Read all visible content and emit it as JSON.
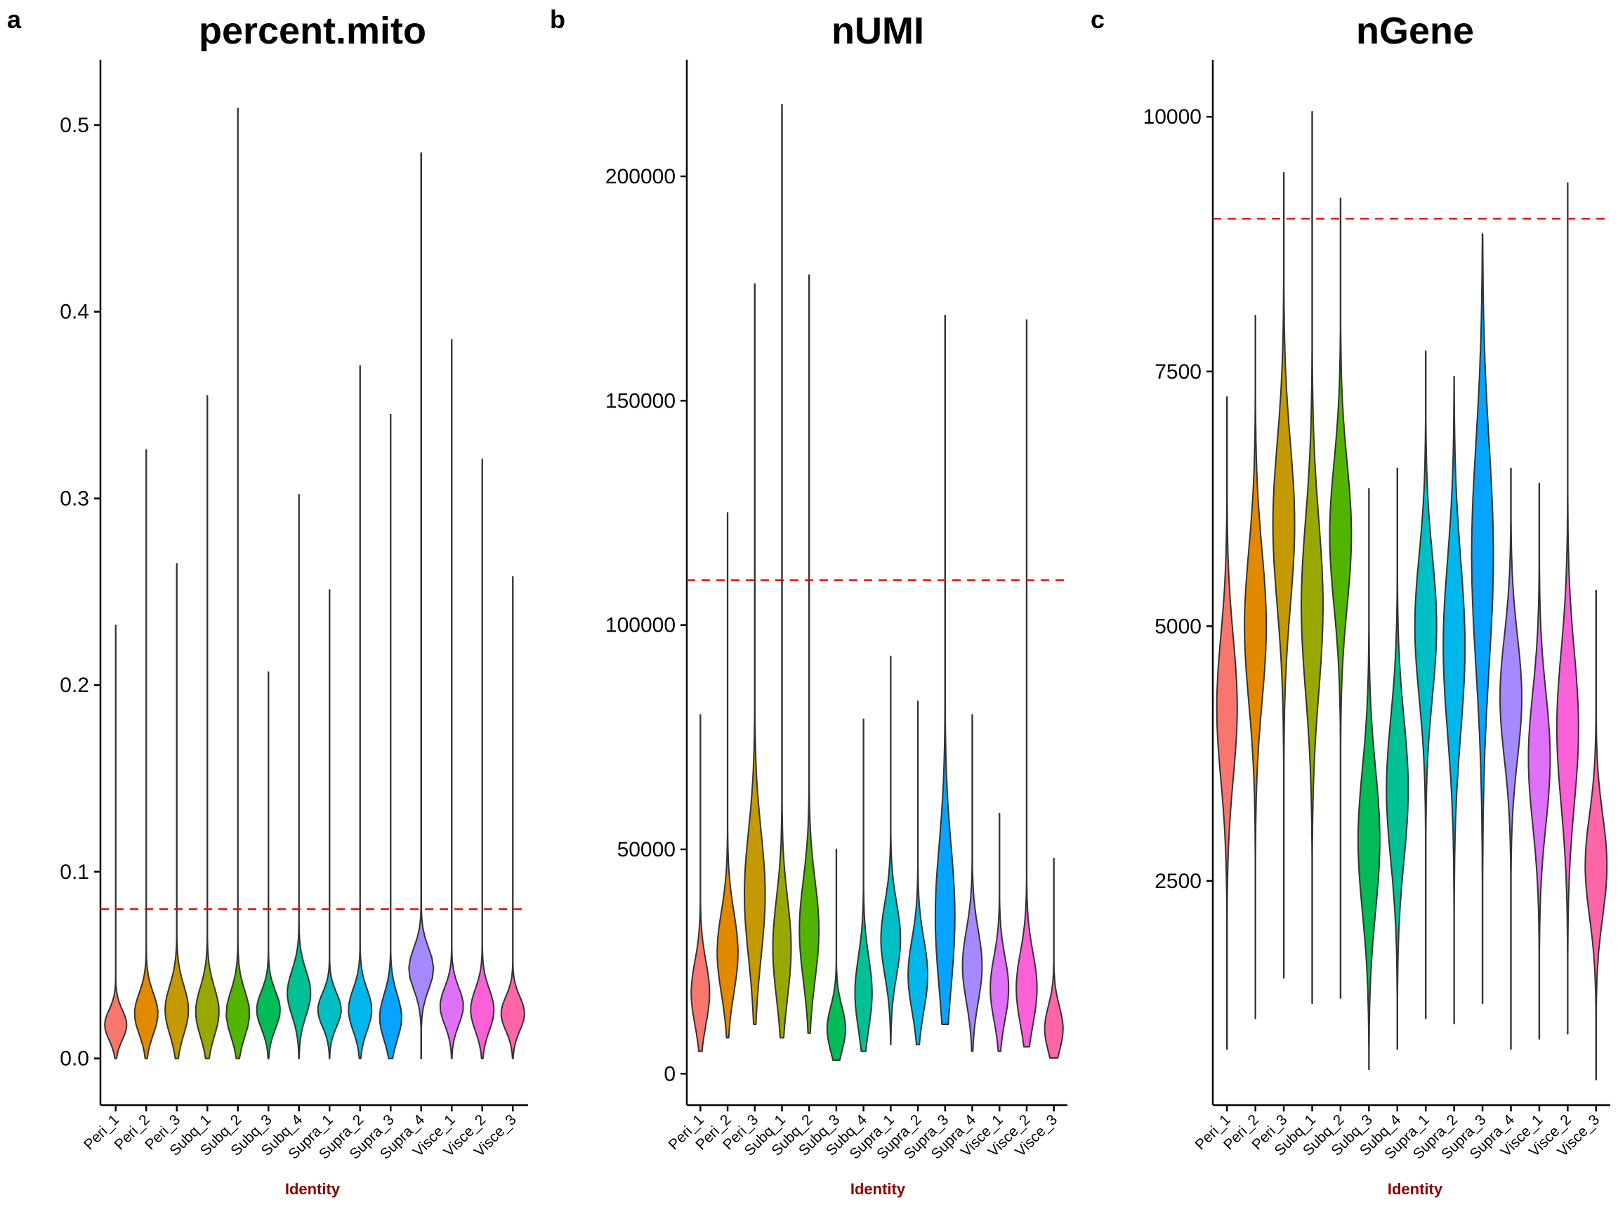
{
  "chart_data": [
    {
      "type": "violin",
      "panel_label": "a",
      "title": "percent.mito",
      "xlabel": "Identity",
      "ylabel": "",
      "ylim": [
        -0.025,
        0.535
      ],
      "yticks": [
        0.0,
        0.1,
        0.2,
        0.3,
        0.4,
        0.5
      ],
      "ytick_labels": [
        "0.0",
        "0.1",
        "0.2",
        "0.3",
        "0.4",
        "0.5"
      ],
      "threshold": 0.08,
      "categories": [
        "Peri_1",
        "Peri_2",
        "Peri_3",
        "Subq_1",
        "Subq_2",
        "Subq_3",
        "Subq_4",
        "Supra_1",
        "Supra_2",
        "Supra_3",
        "Supra_4",
        "Visce_1",
        "Visce_2",
        "Visce_3"
      ],
      "series": [
        {
          "category": "Peri_1",
          "min": 0.0,
          "max": 0.232,
          "mode": 0.018,
          "spread": 0.008,
          "width": 0.8
        },
        {
          "category": "Peri_2",
          "min": 0.0,
          "max": 0.326,
          "mode": 0.024,
          "spread": 0.011,
          "width": 0.85
        },
        {
          "category": "Peri_3",
          "min": 0.0,
          "max": 0.265,
          "mode": 0.026,
          "spread": 0.013,
          "width": 0.85
        },
        {
          "category": "Subq_1",
          "min": 0.0,
          "max": 0.355,
          "mode": 0.025,
          "spread": 0.013,
          "width": 0.85
        },
        {
          "category": "Subq_2",
          "min": 0.0,
          "max": 0.509,
          "mode": 0.024,
          "spread": 0.012,
          "width": 0.85
        },
        {
          "category": "Subq_3",
          "min": 0.0,
          "max": 0.207,
          "mode": 0.026,
          "spread": 0.01,
          "width": 0.85
        },
        {
          "category": "Subq_4",
          "min": 0.0,
          "max": 0.302,
          "mode": 0.035,
          "spread": 0.012,
          "width": 0.85
        },
        {
          "category": "Supra_1",
          "min": 0.0,
          "max": 0.251,
          "mode": 0.026,
          "spread": 0.009,
          "width": 0.85
        },
        {
          "category": "Supra_2",
          "min": 0.0,
          "max": 0.371,
          "mode": 0.026,
          "spread": 0.011,
          "width": 0.85
        },
        {
          "category": "Supra_3",
          "min": 0.0,
          "max": 0.345,
          "mode": 0.022,
          "spread": 0.012,
          "width": 0.8
        },
        {
          "category": "Supra_4",
          "min": 0.0,
          "max": 0.485,
          "mode": 0.048,
          "spread": 0.011,
          "width": 0.9
        },
        {
          "category": "Visce_1",
          "min": 0.0,
          "max": 0.385,
          "mode": 0.028,
          "spread": 0.01,
          "width": 0.85
        },
        {
          "category": "Visce_2",
          "min": 0.0,
          "max": 0.321,
          "mode": 0.026,
          "spread": 0.011,
          "width": 0.85
        },
        {
          "category": "Visce_3",
          "min": 0.0,
          "max": 0.258,
          "mode": 0.024,
          "spread": 0.009,
          "width": 0.85
        }
      ]
    },
    {
      "type": "violin",
      "panel_label": "b",
      "title": "nUMI",
      "xlabel": "Identity",
      "ylabel": "",
      "ylim": [
        -7000,
        226000
      ],
      "yticks": [
        0,
        50000,
        100000,
        150000,
        200000
      ],
      "ytick_labels": [
        "0",
        "50000",
        "100000",
        "150000",
        "200000"
      ],
      "threshold": 110000,
      "categories": [
        "Peri_1",
        "Peri_2",
        "Peri_3",
        "Subq_1",
        "Subq_2",
        "Subq_3",
        "Subq_4",
        "Supra_1",
        "Supra_2",
        "Supra_3",
        "Supra_4",
        "Visce_1",
        "Visce_2",
        "Visce_3"
      ],
      "series": [
        {
          "category": "Peri_1",
          "min": 5000,
          "max": 80000,
          "mode": 18000,
          "spread": 7000,
          "width": 0.75
        },
        {
          "category": "Peri_2",
          "min": 8000,
          "max": 125000,
          "mode": 27000,
          "spread": 9000,
          "width": 0.85
        },
        {
          "category": "Peri_3",
          "min": 11000,
          "max": 176000,
          "mode": 40000,
          "spread": 14000,
          "width": 0.85
        },
        {
          "category": "Subq_1",
          "min": 8000,
          "max": 216000,
          "mode": 28000,
          "spread": 11000,
          "width": 0.75
        },
        {
          "category": "Subq_2",
          "min": 9000,
          "max": 178000,
          "mode": 32000,
          "spread": 11000,
          "width": 0.8
        },
        {
          "category": "Subq_3",
          "min": 3000,
          "max": 50000,
          "mode": 10000,
          "spread": 5000,
          "width": 0.75
        },
        {
          "category": "Subq_4",
          "min": 5000,
          "max": 79000,
          "mode": 18000,
          "spread": 8000,
          "width": 0.7
        },
        {
          "category": "Supra_1",
          "min": 6500,
          "max": 93000,
          "mode": 30000,
          "spread": 8000,
          "width": 0.8
        },
        {
          "category": "Supra_2",
          "min": 6500,
          "max": 83000,
          "mode": 22000,
          "spread": 8000,
          "width": 0.8
        },
        {
          "category": "Supra_3",
          "min": 11000,
          "max": 169000,
          "mode": 35000,
          "spread": 16000,
          "width": 0.8
        },
        {
          "category": "Supra_4",
          "min": 5000,
          "max": 80000,
          "mode": 24000,
          "spread": 8000,
          "width": 0.8
        },
        {
          "category": "Visce_1",
          "min": 5000,
          "max": 58000,
          "mode": 19000,
          "spread": 7000,
          "width": 0.75
        },
        {
          "category": "Visce_2",
          "min": 6000,
          "max": 168000,
          "mode": 19000,
          "spread": 8000,
          "width": 0.85
        },
        {
          "category": "Visce_3",
          "min": 3500,
          "max": 48000,
          "mode": 10000,
          "spread": 5000,
          "width": 0.75
        }
      ]
    },
    {
      "type": "violin",
      "panel_label": "c",
      "title": "nGene",
      "xlabel": "Identity",
      "ylabel": "",
      "ylim": [
        300,
        10560
      ],
      "yticks": [
        2500,
        5000,
        7500,
        10000
      ],
      "ytick_labels": [
        "2500",
        "5000",
        "7500",
        "10000"
      ],
      "threshold": 9000,
      "categories": [
        "Peri_1",
        "Peri_2",
        "Peri_3",
        "Subq_1",
        "Subq_2",
        "Subq_3",
        "Subq_4",
        "Supra_1",
        "Supra_2",
        "Supra_3",
        "Supra_4",
        "Visce_1",
        "Visce_2",
        "Visce_3"
      ],
      "series": [
        {
          "category": "Peri_1",
          "min": 850,
          "max": 7250,
          "mode": 4200,
          "spread": 700,
          "width": 0.8
        },
        {
          "category": "Peri_2",
          "min": 1150,
          "max": 8050,
          "mode": 5000,
          "spread": 750,
          "width": 0.85
        },
        {
          "category": "Peri_3",
          "min": 1550,
          "max": 9450,
          "mode": 6000,
          "spread": 800,
          "width": 0.85
        },
        {
          "category": "Subq_1",
          "min": 1300,
          "max": 10050,
          "mode": 5200,
          "spread": 850,
          "width": 0.85
        },
        {
          "category": "Subq_2",
          "min": 1350,
          "max": 9200,
          "mode": 5900,
          "spread": 700,
          "width": 0.85
        },
        {
          "category": "Subq_3",
          "min": 650,
          "max": 6350,
          "mode": 2900,
          "spread": 700,
          "width": 0.85
        },
        {
          "category": "Subq_4",
          "min": 850,
          "max": 6550,
          "mode": 3400,
          "spread": 700,
          "width": 0.85
        },
        {
          "category": "Supra_1",
          "min": 1150,
          "max": 7700,
          "mode": 5000,
          "spread": 700,
          "width": 0.85
        },
        {
          "category": "Supra_2",
          "min": 1100,
          "max": 7450,
          "mode": 4800,
          "spread": 850,
          "width": 0.85
        },
        {
          "category": "Supra_3",
          "min": 1300,
          "max": 8850,
          "mode": 5700,
          "spread": 1100,
          "width": 0.85
        },
        {
          "category": "Supra_4",
          "min": 850,
          "max": 6550,
          "mode": 4300,
          "spread": 600,
          "width": 0.85
        },
        {
          "category": "Visce_1",
          "min": 950,
          "max": 6400,
          "mode": 3700,
          "spread": 650,
          "width": 0.85
        },
        {
          "category": "Visce_2",
          "min": 1000,
          "max": 9350,
          "mode": 4000,
          "spread": 750,
          "width": 0.85
        },
        {
          "category": "Visce_3",
          "min": 550,
          "max": 5350,
          "mode": 2650,
          "spread": 500,
          "width": 0.85
        }
      ]
    }
  ],
  "colors": {
    "categories": [
      "#F8766D",
      "#E38900",
      "#C49A00",
      "#99A800",
      "#53B400",
      "#00BC56",
      "#00C094",
      "#00BFC4",
      "#00B6EB",
      "#06A4FF",
      "#A58AFF",
      "#DF70F8",
      "#FB61D7",
      "#FF66A8"
    ],
    "threshold_line": "#FF0000",
    "axis": "#000000",
    "xlabel": "#8B0000"
  }
}
